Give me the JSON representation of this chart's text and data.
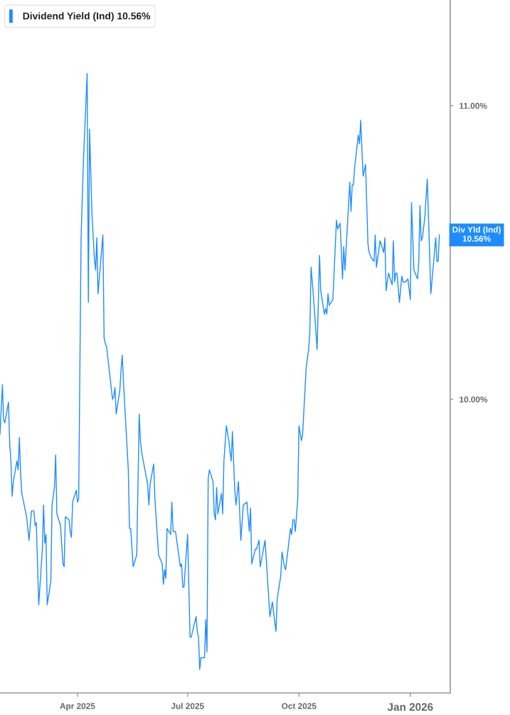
{
  "chart_data": {
    "type": "line",
    "x": [
      "2025-01-27",
      "2025-01-29",
      "2025-01-30",
      "2025-01-31",
      "2025-02-03",
      "2025-02-04",
      "2025-02-05",
      "2025-02-06",
      "2025-02-07",
      "2025-02-10",
      "2025-02-11",
      "2025-02-12",
      "2025-02-13",
      "2025-02-14",
      "2025-02-18",
      "2025-02-20",
      "2025-02-22",
      "2025-02-24",
      "2025-02-25",
      "2025-02-26",
      "2025-02-28",
      "2025-03-03",
      "2025-03-04",
      "2025-03-05",
      "2025-03-06",
      "2025-03-07",
      "2025-03-10",
      "2025-03-11",
      "2025-03-13",
      "2025-03-14",
      "2025-03-15",
      "2025-03-18",
      "2025-03-20",
      "2025-03-21",
      "2025-03-22",
      "2025-03-25",
      "2025-03-26",
      "2025-03-27",
      "2025-03-28",
      "2025-03-31",
      "2025-04-01",
      "2025-04-02",
      "2025-04-04",
      "2025-04-06",
      "2025-04-09",
      "2025-04-10",
      "2025-04-11",
      "2025-04-13",
      "2025-04-15",
      "2025-04-16",
      "2025-04-17",
      "2025-04-18",
      "2025-04-22",
      "2025-04-23",
      "2025-04-24",
      "2025-04-25",
      "2025-04-30",
      "2025-05-01",
      "2025-05-02",
      "2025-05-03",
      "2025-05-06",
      "2025-05-07",
      "2025-05-08",
      "2025-05-09",
      "2025-05-13",
      "2025-05-14",
      "2025-05-15",
      "2025-05-17",
      "2025-05-20",
      "2025-05-22",
      "2025-05-23",
      "2025-05-24",
      "2025-05-29",
      "2025-05-30",
      "2025-05-31",
      "2025-06-03",
      "2025-06-04",
      "2025-06-07",
      "2025-06-10",
      "2025-06-11",
      "2025-06-12",
      "2025-06-13",
      "2025-06-14",
      "2025-06-17",
      "2025-06-18",
      "2025-06-19",
      "2025-06-21",
      "2025-06-25",
      "2025-06-26",
      "2025-06-27",
      "2025-06-28",
      "2025-07-01",
      "2025-07-03",
      "2025-07-04",
      "2025-07-08",
      "2025-07-09",
      "2025-07-10",
      "2025-07-11",
      "2025-07-12",
      "2025-07-15",
      "2025-07-16",
      "2025-07-17",
      "2025-07-18",
      "2025-07-19",
      "2025-07-22",
      "2025-07-23",
      "2025-07-24",
      "2025-07-25",
      "2025-07-26",
      "2025-07-29",
      "2025-07-30",
      "2025-07-31",
      "2025-08-02",
      "2025-08-04",
      "2025-08-06",
      "2025-08-07",
      "2025-08-09",
      "2025-08-10",
      "2025-08-12",
      "2025-08-14",
      "2025-08-16",
      "2025-08-19",
      "2025-08-21",
      "2025-08-22",
      "2025-08-23",
      "2025-08-26",
      "2025-08-27",
      "2025-08-29",
      "2025-08-30",
      "2025-09-03",
      "2025-09-07",
      "2025-09-09",
      "2025-09-12",
      "2025-09-13",
      "2025-09-16",
      "2025-09-17",
      "2025-09-19",
      "2025-09-20",
      "2025-09-24",
      "2025-09-25",
      "2025-09-26",
      "2025-09-27",
      "2025-09-28",
      "2025-09-30",
      "2025-10-01",
      "2025-10-03",
      "2025-10-04",
      "2025-10-07",
      "2025-10-09",
      "2025-10-10",
      "2025-10-11",
      "2025-10-13",
      "2025-10-16",
      "2025-10-18",
      "2025-10-19",
      "2025-10-22",
      "2025-10-23",
      "2025-10-24",
      "2025-10-25",
      "2025-10-26",
      "2025-10-29",
      "2025-11-01",
      "2025-11-02",
      "2025-11-04",
      "2025-11-06",
      "2025-11-07",
      "2025-11-08",
      "2025-11-12",
      "2025-11-13",
      "2025-11-14",
      "2025-11-15",
      "2025-11-16",
      "2025-11-19",
      "2025-11-20",
      "2025-11-21",
      "2025-11-23",
      "2025-11-25",
      "2025-11-27",
      "2025-11-28",
      "2025-11-30",
      "2025-12-02",
      "2025-12-03",
      "2025-12-04",
      "2025-12-07",
      "2025-12-10",
      "2025-12-11",
      "2025-12-12",
      "2025-12-14",
      "2025-12-17",
      "2025-12-18",
      "2025-12-19",
      "2025-12-20",
      "2025-12-21",
      "2025-12-23",
      "2025-12-25",
      "2025-12-26",
      "2025-12-28",
      "2025-12-30",
      "2026-01-01",
      "2026-01-02",
      "2026-01-04",
      "2026-01-07",
      "2026-01-08",
      "2026-01-09",
      "2026-01-10",
      "2026-01-11",
      "2026-01-13",
      "2026-01-15",
      "2026-01-18",
      "2026-01-22",
      "2026-01-23",
      "2026-01-24",
      "2026-01-25"
    ],
    "series": [
      {
        "name": "Dividend Yield (Ind) 10.56%",
        "color": "#1e8cff",
        "values": [
          9.88,
          10.05,
          9.93,
          9.92,
          9.99,
          9.85,
          9.79,
          9.67,
          9.72,
          9.79,
          9.76,
          9.87,
          9.75,
          9.68,
          9.6,
          9.52,
          9.62,
          9.62,
          9.57,
          9.58,
          9.3,
          9.49,
          9.64,
          9.51,
          9.54,
          9.3,
          9.38,
          9.64,
          9.7,
          9.81,
          9.61,
          9.57,
          9.44,
          9.43,
          9.6,
          9.59,
          9.55,
          9.53,
          9.65,
          9.69,
          9.65,
          9.66,
          10.55,
          10.82,
          11.11,
          10.33,
          10.92,
          10.63,
          10.48,
          10.44,
          10.55,
          10.36,
          10.56,
          10.21,
          10.19,
          10.18,
          10.0,
          10.01,
          10.04,
          9.95,
          10.03,
          10.1,
          10.15,
          10.06,
          9.76,
          9.56,
          9.56,
          9.43,
          9.47,
          9.95,
          9.86,
          9.82,
          9.71,
          9.64,
          9.71,
          9.78,
          9.66,
          9.47,
          9.44,
          9.37,
          9.42,
          9.39,
          9.56,
          9.54,
          9.65,
          9.55,
          9.55,
          9.43,
          9.44,
          9.36,
          9.36,
          9.54,
          9.19,
          9.19,
          9.26,
          9.21,
          9.19,
          9.08,
          9.12,
          9.12,
          9.25,
          9.14,
          9.73,
          9.76,
          9.72,
          9.61,
          9.59,
          9.7,
          9.61,
          9.68,
          9.61,
          9.79,
          9.91,
          9.86,
          9.79,
          9.89,
          9.69,
          9.64,
          9.72,
          9.52,
          9.64,
          9.65,
          9.55,
          9.63,
          9.44,
          9.49,
          9.49,
          9.52,
          9.43,
          9.52,
          9.26,
          9.31,
          9.21,
          9.32,
          9.4,
          9.48,
          9.43,
          9.42,
          9.56,
          9.54,
          9.59,
          9.59,
          9.55,
          9.66,
          9.91,
          9.86,
          9.88,
          10.11,
          10.17,
          10.23,
          10.45,
          10.35,
          10.17,
          10.49,
          10.37,
          10.29,
          10.31,
          10.29,
          10.36,
          10.32,
          10.34,
          10.61,
          10.58,
          10.6,
          10.41,
          10.52,
          10.44,
          10.74,
          10.64,
          10.73,
          10.73,
          10.79,
          10.9,
          10.87,
          10.95,
          10.76,
          10.8,
          10.53,
          10.5,
          10.48,
          10.47,
          10.56,
          10.45,
          10.54,
          10.5,
          10.55,
          10.37,
          10.43,
          10.39,
          10.54,
          10.4,
          10.43,
          10.43,
          10.33,
          10.42,
          10.4,
          10.4,
          10.41,
          10.34,
          10.67,
          10.44,
          10.41,
          10.47,
          10.66,
          10.54,
          10.55,
          10.62,
          10.75,
          10.36,
          10.55,
          10.47,
          10.47,
          10.56
        ]
      }
    ],
    "xlim": [
      "2025-01-27",
      "2026-02-03"
    ],
    "xticks": [
      {
        "value": "2025-04-01",
        "label": "Apr 2025"
      },
      {
        "value": "2025-07-01",
        "label": "Jul 2025"
      },
      {
        "value": "2025-10-01",
        "label": "Oct 2025"
      },
      {
        "value": "2026-01-01",
        "label": "Jan 2026"
      }
    ],
    "ylim": [
      9.0,
      11.36
    ],
    "yticks": [
      {
        "value": 10,
        "label": "10.00%"
      },
      {
        "value": 11,
        "label": "11.00%"
      }
    ],
    "legend": "top left",
    "annotations": [
      {
        "text": "Div Yld (Ind)\n10.56%",
        "x": "2026-01-25",
        "y": 10.56
      }
    ]
  }
}
